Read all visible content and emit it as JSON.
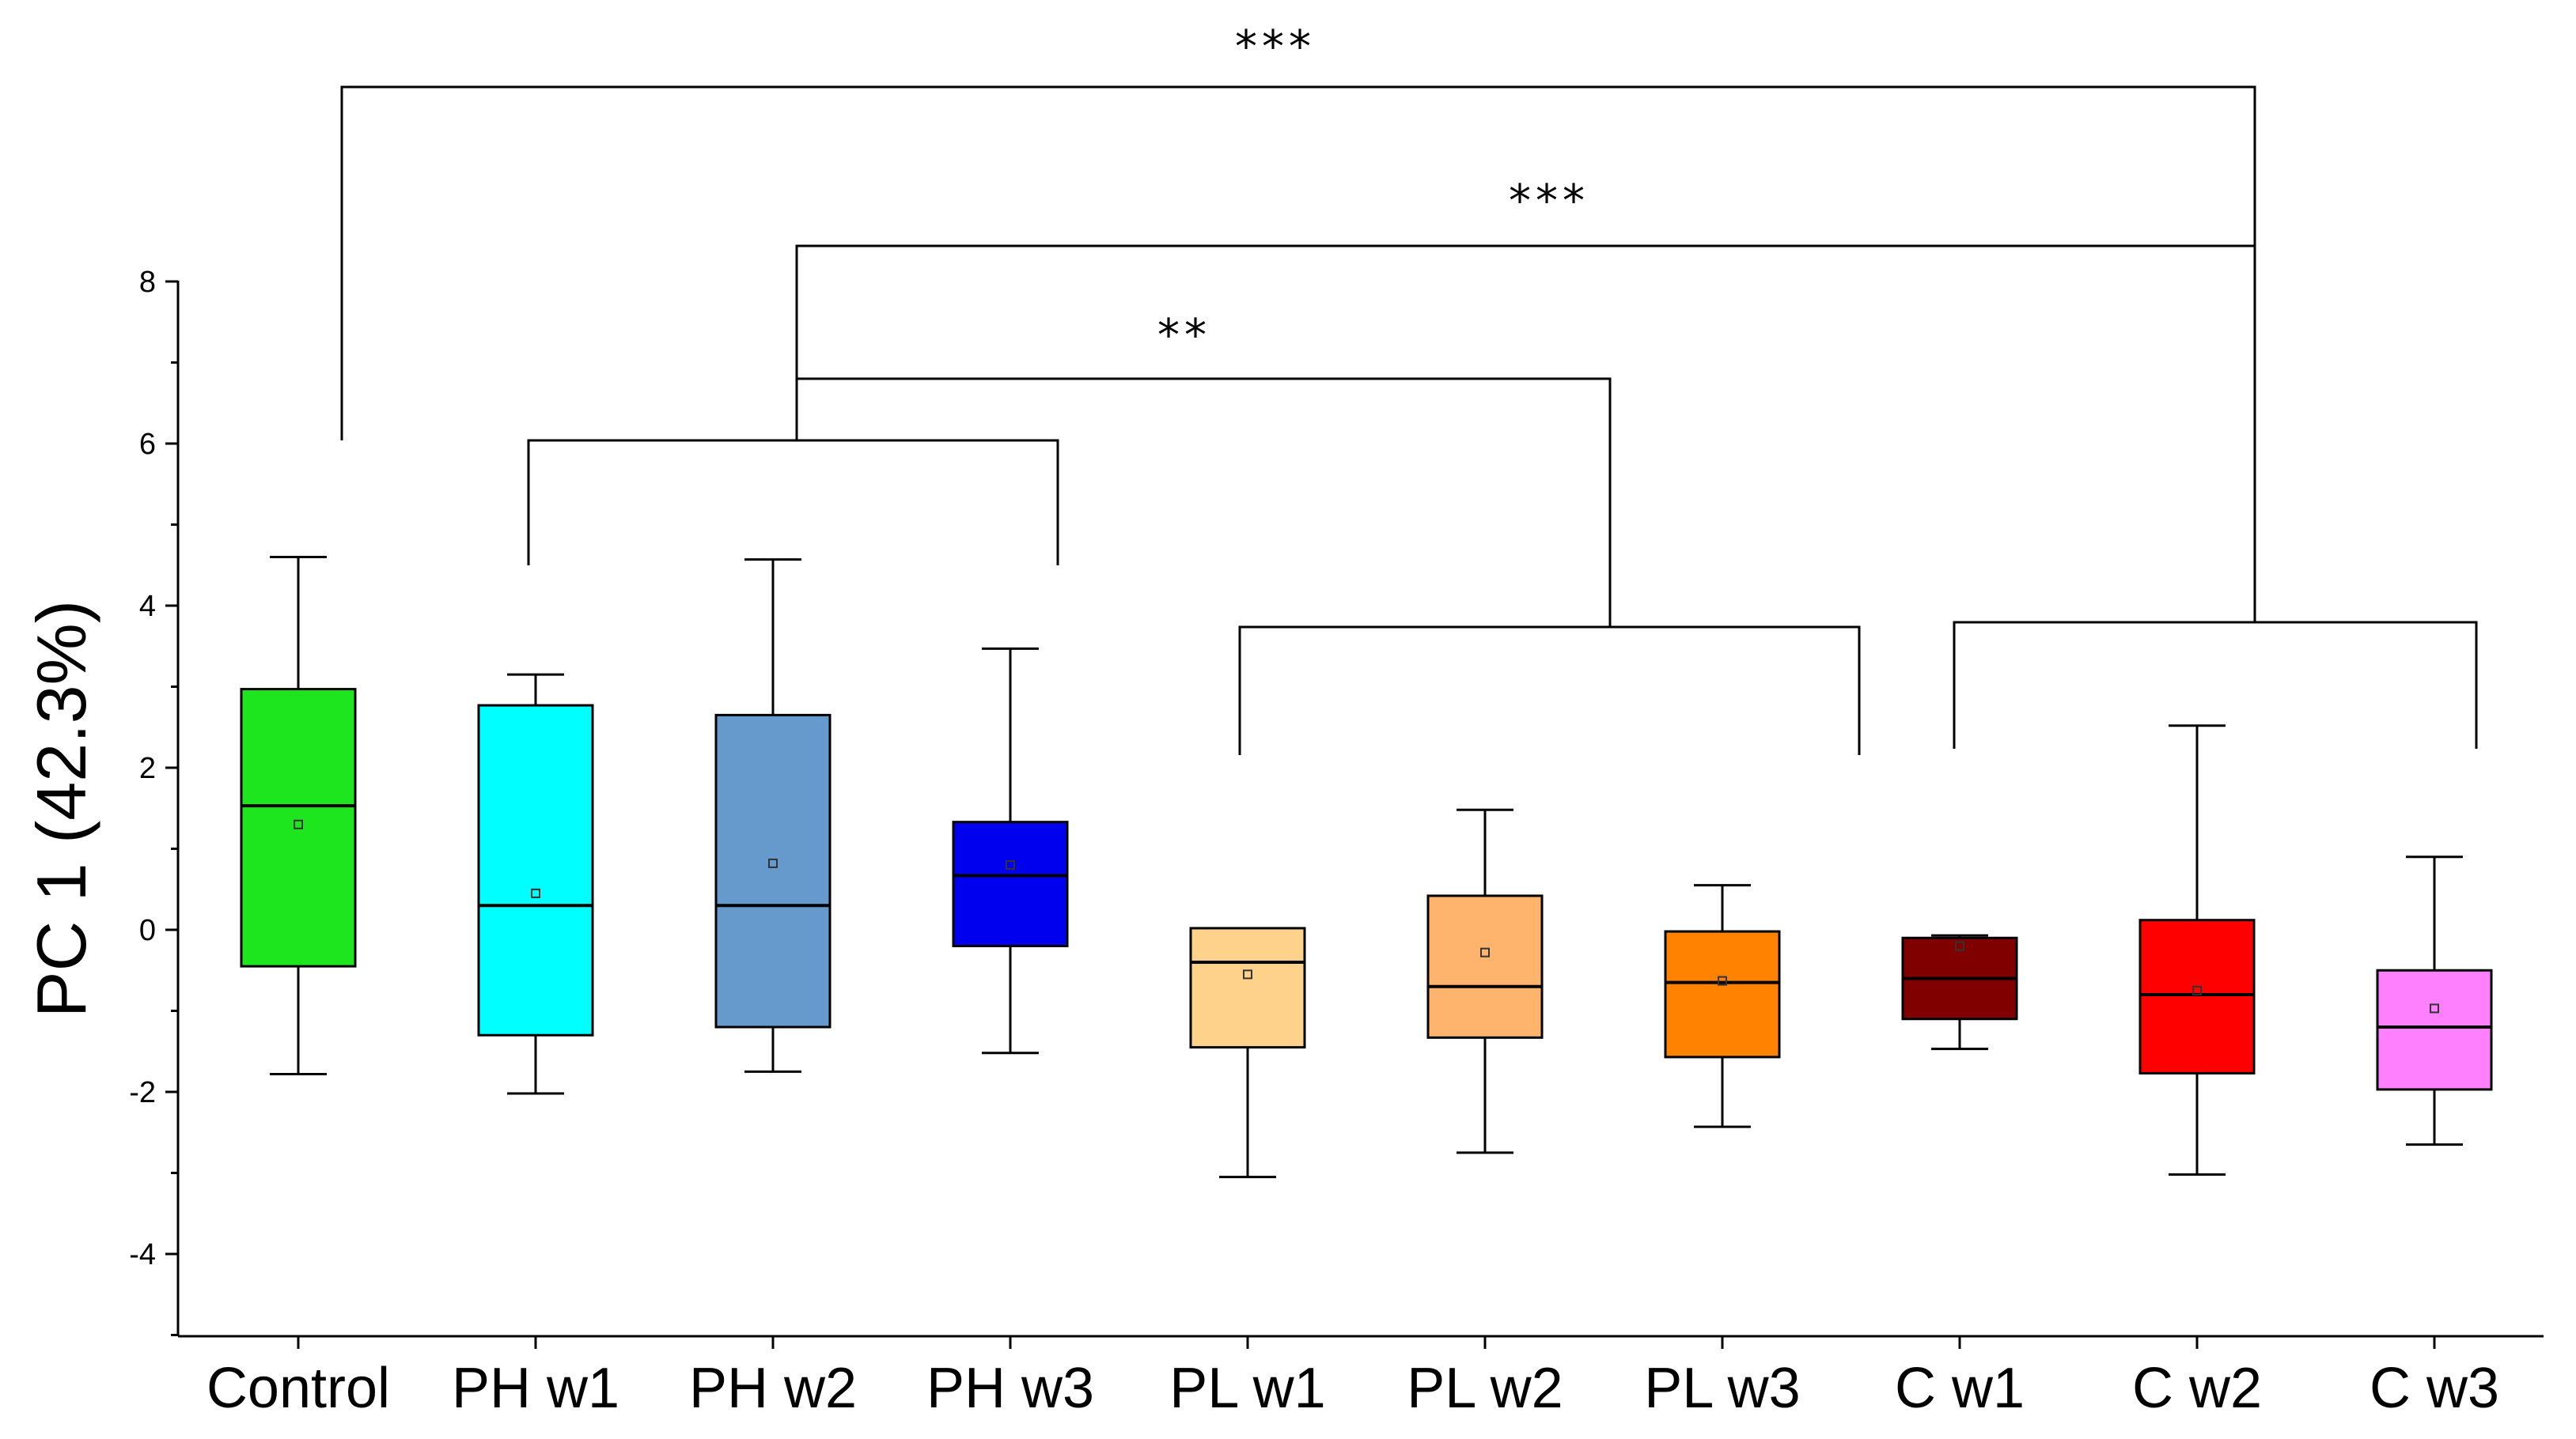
{
  "chart_data": {
    "type": "box",
    "title": "",
    "xlabel": "",
    "ylabel": "PC 1 (42.3%)",
    "ylim": [
      -5,
      8
    ],
    "yticks": [
      "-4",
      "-2",
      "0",
      "2",
      "4",
      "6",
      "8"
    ],
    "grid": false,
    "categories": [
      "Control",
      "PH w1",
      "PH w2",
      "PH w3",
      "PL w1",
      "PL w2",
      "PL w3",
      "C w1",
      "C w2",
      "C w3"
    ],
    "boxes": [
      {
        "name": "Control",
        "whisker_low": -1.78,
        "q1": -0.45,
        "median": 1.53,
        "q3": 2.97,
        "whisker_high": 4.6,
        "mean": 1.3,
        "color": "#1ee61e"
      },
      {
        "name": "PH w1",
        "whisker_low": -2.02,
        "q1": -1.3,
        "median": 0.3,
        "q3": 2.77,
        "whisker_high": 3.15,
        "mean": 0.45,
        "color": "#00ffff"
      },
      {
        "name": "PH w2",
        "whisker_low": -1.75,
        "q1": -1.2,
        "median": 0.3,
        "q3": 2.65,
        "whisker_high": 4.57,
        "mean": 0.82,
        "color": "#6699cc"
      },
      {
        "name": "PH w3",
        "whisker_low": -1.52,
        "q1": -0.2,
        "median": 0.67,
        "q3": 1.33,
        "whisker_high": 3.47,
        "mean": 0.8,
        "color": "#0000ee"
      },
      {
        "name": "PL w1",
        "whisker_low": -3.05,
        "q1": -1.45,
        "median": -0.4,
        "q3": 0.02,
        "whisker_high": 0.02,
        "mean": -0.55,
        "color": "#ffd28c"
      },
      {
        "name": "PL w2",
        "whisker_low": -2.75,
        "q1": -1.33,
        "median": -0.7,
        "q3": 0.42,
        "whisker_high": 1.48,
        "mean": -0.28,
        "color": "#ffb46e"
      },
      {
        "name": "PL w3",
        "whisker_low": -2.43,
        "q1": -1.57,
        "median": -0.65,
        "q3": -0.02,
        "whisker_high": 0.55,
        "mean": -0.63,
        "color": "#ff8200"
      },
      {
        "name": "C w1",
        "whisker_low": -1.47,
        "q1": -1.1,
        "median": -0.6,
        "q3": -0.1,
        "whisker_high": -0.07,
        "mean": -0.2,
        "color": "#800000"
      },
      {
        "name": "C w2",
        "whisker_low": -3.02,
        "q1": -1.77,
        "median": -0.8,
        "q3": 0.12,
        "whisker_high": 2.52,
        "mean": -0.75,
        "color": "#ff0000"
      },
      {
        "name": "C w3",
        "whisker_low": -2.65,
        "q1": -1.97,
        "median": -1.2,
        "q3": -0.5,
        "whisker_high": 0.9,
        "mean": -0.97,
        "color": "#ff80ff"
      }
    ],
    "significance": [
      {
        "label": "***",
        "left": "Control",
        "right_group": [
          "C w1",
          "C w3"
        ]
      },
      {
        "label": "***",
        "left_group": [
          "PH w1",
          "PH w3"
        ],
        "right_group": [
          "C w1",
          "C w3"
        ]
      },
      {
        "label": "**",
        "left_group": [
          "PH w1",
          "PH w3"
        ],
        "right_group": [
          "PL w1",
          "PL w3"
        ]
      }
    ]
  }
}
